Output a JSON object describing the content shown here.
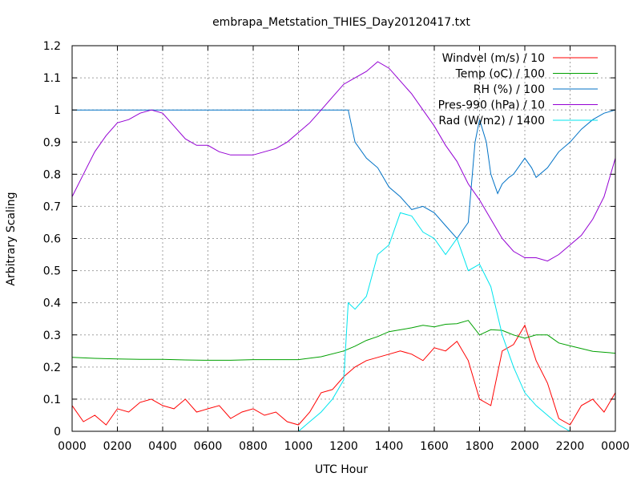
{
  "chart_data": {
    "type": "line",
    "title": "embrapa_Metstation_THIES_Day20120417.txt",
    "xlabel": "UTC Hour",
    "ylabel": "Arbitrary Scaling",
    "xlim": [
      0,
      24
    ],
    "ylim": [
      0,
      1.2
    ],
    "x_ticks": [
      0,
      2,
      4,
      6,
      8,
      10,
      12,
      14,
      16,
      18,
      20,
      22,
      24
    ],
    "x_tick_labels": [
      "0000",
      "0200",
      "0400",
      "0600",
      "0800",
      "1000",
      "1200",
      "1400",
      "1600",
      "1800",
      "2000",
      "2200",
      "0000"
    ],
    "y_ticks": [
      0,
      0.1,
      0.2,
      0.3,
      0.4,
      0.5,
      0.6,
      0.7,
      0.8,
      0.9,
      1.0,
      1.1,
      1.2
    ],
    "y_tick_labels": [
      "0",
      "0.1",
      "0.2",
      "0.3",
      "0.4",
      "0.5",
      "0.6",
      "0.7",
      "0.8",
      "0.9",
      "1",
      "1.1",
      "1.2"
    ],
    "grid": true,
    "legend_position": "top-right",
    "series": [
      {
        "name": "Windvel (m/s) / 10",
        "color": "#ff0000",
        "x": [
          0,
          0.5,
          1,
          1.5,
          2,
          2.5,
          3,
          3.5,
          4,
          4.5,
          5,
          5.5,
          6,
          6.5,
          7,
          7.5,
          8,
          8.5,
          9,
          9.5,
          10,
          10.5,
          11,
          11.5,
          12,
          12.5,
          13,
          13.5,
          14,
          14.5,
          15,
          15.5,
          16,
          16.5,
          17,
          17.5,
          18,
          18.5,
          19,
          19.5,
          20,
          20.5,
          21,
          21.5,
          22,
          22.5,
          23,
          23.5,
          24
        ],
        "y": [
          0.08,
          0.03,
          0.05,
          0.02,
          0.07,
          0.06,
          0.09,
          0.1,
          0.08,
          0.07,
          0.1,
          0.06,
          0.07,
          0.08,
          0.04,
          0.06,
          0.07,
          0.05,
          0.06,
          0.03,
          0.02,
          0.06,
          0.12,
          0.13,
          0.17,
          0.2,
          0.22,
          0.23,
          0.24,
          0.25,
          0.24,
          0.22,
          0.26,
          0.25,
          0.28,
          0.22,
          0.1,
          0.08,
          0.25,
          0.27,
          0.33,
          0.22,
          0.15,
          0.04,
          0.02,
          0.08,
          0.1,
          0.06,
          0.12
        ]
      },
      {
        "name": "Temp (oC) / 100",
        "color": "#00a000",
        "x": [
          0,
          1,
          2,
          3,
          4,
          5,
          6,
          7,
          8,
          9,
          10,
          11,
          12,
          12.5,
          13,
          13.5,
          14,
          15,
          15.5,
          16,
          16.5,
          17,
          17.5,
          18,
          18.5,
          19,
          19.5,
          20,
          20.5,
          21,
          21.5,
          22,
          23,
          24
        ],
        "y": [
          0.23,
          0.227,
          0.225,
          0.224,
          0.224,
          0.222,
          0.221,
          0.221,
          0.223,
          0.223,
          0.223,
          0.232,
          0.25,
          0.265,
          0.283,
          0.295,
          0.31,
          0.322,
          0.33,
          0.325,
          0.333,
          0.335,
          0.345,
          0.3,
          0.316,
          0.314,
          0.3,
          0.29,
          0.3,
          0.3,
          0.275,
          0.266,
          0.249,
          0.243
        ]
      },
      {
        "name": "RH (%) / 100",
        "color": "#0072c6",
        "x": [
          0,
          12.2,
          12.5,
          13,
          13.5,
          14,
          14.5,
          15,
          15.5,
          16,
          16.5,
          17,
          17.5,
          17.8,
          18,
          18.3,
          18.5,
          18.8,
          19,
          19.3,
          19.5,
          20,
          20.3,
          20.5,
          21,
          21.5,
          22,
          22.5,
          23,
          23.5,
          24
        ],
        "y": [
          1.0,
          1.0,
          0.9,
          0.85,
          0.82,
          0.76,
          0.73,
          0.69,
          0.7,
          0.68,
          0.64,
          0.6,
          0.65,
          0.9,
          0.97,
          0.9,
          0.8,
          0.74,
          0.77,
          0.79,
          0.8,
          0.85,
          0.82,
          0.79,
          0.82,
          0.87,
          0.9,
          0.94,
          0.97,
          0.99,
          1.0
        ]
      },
      {
        "name": "Pres-990 (hPa) / 10",
        "color": "#9400d3",
        "x": [
          0,
          0.5,
          1,
          1.5,
          2,
          2.5,
          3,
          3.5,
          4,
          4.5,
          5,
          5.5,
          6,
          6.5,
          7,
          7.5,
          8,
          8.5,
          9,
          9.5,
          10,
          10.5,
          11,
          11.5,
          12,
          12.5,
          13,
          13.5,
          14,
          14.5,
          15,
          15.5,
          16,
          16.5,
          17,
          17.5,
          18,
          18.5,
          19,
          19.5,
          20,
          20.5,
          21,
          21.5,
          22,
          22.5,
          23,
          23.5,
          24
        ],
        "y": [
          0.73,
          0.8,
          0.87,
          0.92,
          0.96,
          0.97,
          0.99,
          1.0,
          0.99,
          0.95,
          0.91,
          0.89,
          0.89,
          0.87,
          0.86,
          0.86,
          0.86,
          0.87,
          0.88,
          0.9,
          0.93,
          0.96,
          1.0,
          1.04,
          1.08,
          1.1,
          1.12,
          1.15,
          1.13,
          1.09,
          1.05,
          1.0,
          0.95,
          0.89,
          0.84,
          0.77,
          0.72,
          0.66,
          0.6,
          0.56,
          0.54,
          0.54,
          0.53,
          0.55,
          0.58,
          0.61,
          0.66,
          0.73,
          0.85
        ]
      },
      {
        "name": "Rad (W/m2) / 1400",
        "color": "#00e5ee",
        "x": [
          0,
          10,
          10.5,
          11,
          11.5,
          12,
          12.2,
          12.5,
          13,
          13.5,
          14,
          14.5,
          15,
          15.5,
          16,
          16.5,
          17,
          17.5,
          18,
          18.5,
          19,
          19.5,
          20,
          20.5,
          21,
          21.5,
          22,
          24
        ],
        "y": [
          0,
          0,
          0.03,
          0.06,
          0.1,
          0.16,
          0.4,
          0.38,
          0.42,
          0.55,
          0.58,
          0.68,
          0.67,
          0.62,
          0.6,
          0.55,
          0.6,
          0.5,
          0.52,
          0.45,
          0.3,
          0.2,
          0.12,
          0.08,
          0.05,
          0.02,
          0,
          0
        ]
      }
    ]
  }
}
